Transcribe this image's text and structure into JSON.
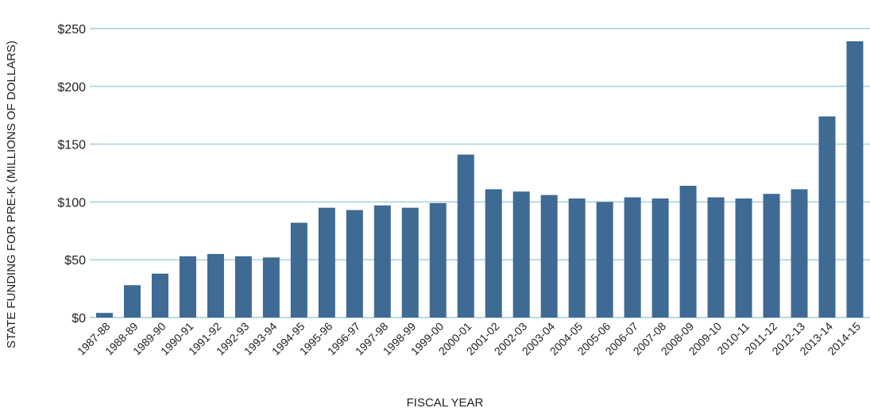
{
  "chart_data": {
    "type": "bar",
    "title": "",
    "xlabel": "FISCAL YEAR",
    "ylabel": "STATE FUNDING FOR PRE-K (MILLIONS OF DOLLARS)",
    "ylim": [
      0,
      250
    ],
    "yticks": [
      0,
      50,
      100,
      150,
      200,
      250
    ],
    "ytick_labels": [
      "$0",
      "$50",
      "$100",
      "$150",
      "$200",
      "$250"
    ],
    "grid": true,
    "legend": "none",
    "colors": {
      "bar": "#3f6a93",
      "grid": "#b9d9e0",
      "text": "#222222"
    },
    "categories": [
      "1987-88",
      "1988-89",
      "1989-90",
      "1990-91",
      "1991-92",
      "1992-93",
      "1993-94",
      "1994-95",
      "1995-96",
      "1996-97",
      "1997-98",
      "1998-99",
      "1999-00",
      "2000-01",
      "2001-02",
      "2002-03",
      "2003-04",
      "2004-05",
      "2005-06",
      "2006-07",
      "2007-08",
      "2008-09",
      "2009-10",
      "2010-11",
      "2011-12",
      "2012-13",
      "2013-14",
      "2014-15"
    ],
    "values": [
      4,
      28,
      38,
      53,
      55,
      53,
      52,
      82,
      95,
      93,
      97,
      95,
      99,
      141,
      111,
      109,
      106,
      103,
      100,
      104,
      103,
      114,
      104,
      103,
      107,
      111,
      174,
      239
    ]
  }
}
